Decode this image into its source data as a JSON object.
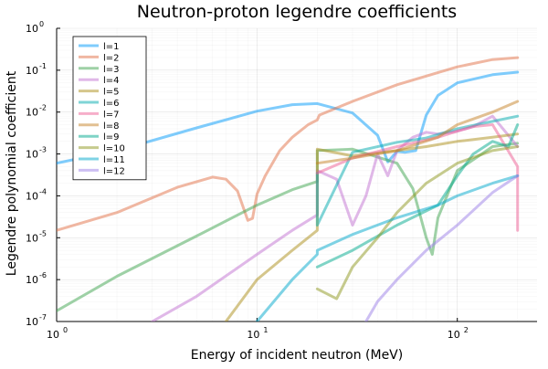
{
  "chart_data": {
    "type": "line",
    "title": "Neutron-proton legendre coefficients",
    "xlabel": "Energy of incident neutron (MeV)",
    "ylabel": "Legendre polynomial coefficient",
    "xscale": "log",
    "yscale": "log",
    "xlim": [
      1,
      250
    ],
    "ylim": [
      1e-07,
      1
    ],
    "grid": true,
    "legend_position": "top-left",
    "x_ticks": [
      {
        "value": 1,
        "label": "10",
        "exp": "0"
      },
      {
        "value": 10,
        "label": "10",
        "exp": "1"
      },
      {
        "value": 100,
        "label": "10",
        "exp": "2"
      }
    ],
    "y_ticks": [
      {
        "value": 1e-07,
        "label": "10",
        "exp": "-7"
      },
      {
        "value": 1e-06,
        "label": "10",
        "exp": "-6"
      },
      {
        "value": 1e-05,
        "label": "10",
        "exp": "-5"
      },
      {
        "value": 0.0001,
        "label": "10",
        "exp": "-4"
      },
      {
        "value": 0.001,
        "label": "10",
        "exp": "-3"
      },
      {
        "value": 0.01,
        "label": "10",
        "exp": "-2"
      },
      {
        "value": 0.1,
        "label": "10",
        "exp": "-1"
      },
      {
        "value": 1,
        "label": "10",
        "exp": "0"
      }
    ],
    "series": [
      {
        "name": "l=1",
        "color": "#009af9",
        "x": [
          1,
          2,
          5,
          10,
          15,
          20,
          30,
          40,
          45,
          50,
          55,
          62,
          70,
          80,
          100,
          150,
          200
        ],
        "y": [
          0.0006,
          0.0012,
          0.0042,
          0.0105,
          0.015,
          0.016,
          0.0095,
          0.0028,
          0.00065,
          0.00115,
          0.0011,
          0.0012,
          0.0085,
          0.025,
          0.05,
          0.078,
          0.09
        ]
      },
      {
        "name": "l=2",
        "color": "#e26f46",
        "x": [
          1,
          2,
          4,
          6,
          7,
          8,
          9,
          9.5,
          10,
          11,
          13,
          15,
          18,
          20,
          20.5,
          30,
          50,
          100,
          150,
          200
        ],
        "y": [
          1.5e-05,
          4e-05,
          0.00016,
          0.00028,
          0.00025,
          0.00013,
          2.6e-05,
          2.9e-05,
          0.00011,
          0.0003,
          0.0012,
          0.0025,
          0.005,
          0.0065,
          0.0085,
          0.018,
          0.045,
          0.12,
          0.18,
          0.2
        ]
      },
      {
        "name": "l=3",
        "color": "#3da44d",
        "x": [
          1,
          2,
          5,
          10,
          15,
          20,
          20,
          30,
          50,
          60,
          70,
          75,
          80,
          100,
          150,
          200
        ],
        "y": [
          1.8e-07,
          1.2e-06,
          1.1e-05,
          6e-05,
          0.00014,
          0.00022,
          0.0012,
          0.0013,
          0.0006,
          0.00015,
          1e-05,
          4e-06,
          3e-05,
          0.0004,
          0.0015,
          0.0018
        ]
      },
      {
        "name": "l=4",
        "color": "#c271d2",
        "x": [
          3,
          5,
          10,
          15,
          20,
          20,
          25,
          30,
          35,
          40,
          45,
          50,
          60,
          70,
          80,
          100,
          120,
          150,
          200
        ],
        "y": [
          1e-07,
          4e-07,
          4e-06,
          1.5e-05,
          3.5e-05,
          0.0004,
          0.00025,
          2e-05,
          0.0001,
          0.001,
          0.0003,
          0.0012,
          0.0025,
          0.0033,
          0.003,
          0.0035,
          0.0045,
          0.008,
          0.0015
        ]
      },
      {
        "name": "l=5",
        "color": "#ac8d18",
        "x": [
          7,
          10,
          15,
          20,
          20,
          30,
          50,
          70,
          100,
          150,
          200
        ],
        "y": [
          1e-07,
          1e-06,
          5e-06,
          1.5e-05,
          0.0013,
          0.0009,
          0.0012,
          0.0015,
          0.002,
          0.0025,
          0.003
        ]
      },
      {
        "name": "l=6",
        "color": "#00a9ad",
        "x": [
          20,
          20,
          30,
          50,
          70,
          100,
          150,
          200
        ],
        "y": [
          0.00035,
          2e-05,
          0.0011,
          0.0019,
          0.0024,
          0.004,
          0.006,
          0.008
        ]
      },
      {
        "name": "l=7",
        "color": "#ed5e93",
        "x": [
          20,
          30,
          50,
          80,
          100,
          120,
          150,
          200,
          200
        ],
        "y": [
          0.00035,
          0.0008,
          0.0015,
          0.0025,
          0.0035,
          0.0045,
          0.005,
          0.0005,
          1.5e-05
        ]
      },
      {
        "name": "l=8",
        "color": "#c68125",
        "x": [
          20,
          30,
          50,
          80,
          100,
          150,
          200
        ],
        "y": [
          0.0006,
          0.0008,
          0.0012,
          0.0025,
          0.005,
          0.01,
          0.018
        ]
      },
      {
        "name": "l=9",
        "color": "#00a98d",
        "x": [
          20,
          30,
          50,
          80,
          100,
          120,
          150,
          180,
          200
        ],
        "y": [
          2e-06,
          5e-06,
          2e-05,
          6e-05,
          0.0003,
          0.001,
          0.002,
          0.0015,
          0.005
        ]
      },
      {
        "name": "l=10",
        "color": "#8e971d",
        "x": [
          20,
          25,
          30,
          40,
          50,
          70,
          100,
          150,
          200
        ],
        "y": [
          6e-07,
          3.5e-07,
          2e-06,
          1e-05,
          4e-05,
          0.0002,
          0.0006,
          0.0012,
          0.0015
        ]
      },
      {
        "name": "l=11",
        "color": "#00a8cb",
        "x": [
          10,
          15,
          20,
          20,
          30,
          50,
          80,
          100,
          150,
          200
        ],
        "y": [
          1e-07,
          1e-06,
          4e-06,
          5e-06,
          1.2e-05,
          3e-05,
          6e-05,
          0.0001,
          0.0002,
          0.0003
        ]
      },
      {
        "name": "l=12",
        "color": "#9b7fe8",
        "x": [
          35,
          40,
          50,
          70,
          100,
          150,
          200
        ],
        "y": [
          1e-07,
          3e-07,
          1e-06,
          5e-06,
          2e-05,
          0.00012,
          0.0003
        ]
      }
    ]
  }
}
